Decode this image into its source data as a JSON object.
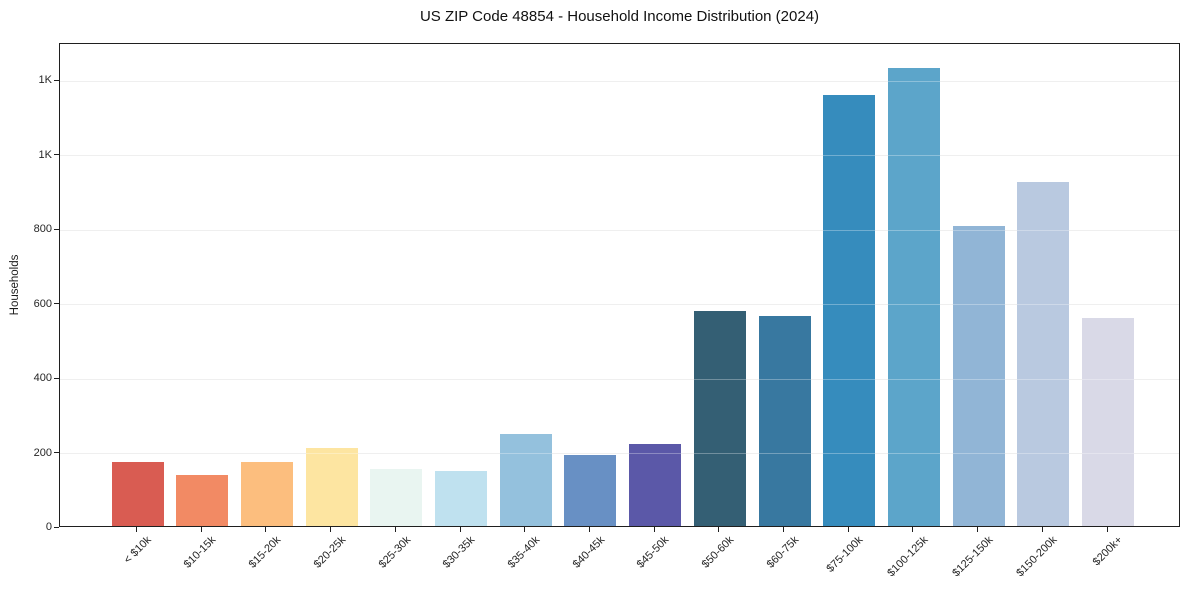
{
  "chart_data": {
    "type": "bar",
    "title": "US ZIP Code 48854 - Household Income Distribution (2024)",
    "xlabel": "",
    "ylabel": "Households",
    "categories": [
      "< $10k",
      "$10-15k",
      "$15-20k",
      "$20-25k",
      "$25-30k",
      "$30-35k",
      "$35-40k",
      "$40-45k",
      "$45-50k",
      "$50-60k",
      "$60-75k",
      "$75-100k",
      "$100-125k",
      "$125-150k",
      "$150-200k",
      "$200k+"
    ],
    "values": [
      172,
      136,
      172,
      210,
      152,
      149,
      247,
      192,
      220,
      578,
      565,
      1158,
      1231,
      806,
      924,
      559
    ],
    "bar_colors": [
      "#d95c52",
      "#f28a64",
      "#fcbe7e",
      "#fde5a1",
      "#e9f5f1",
      "#bfe1ef",
      "#94c1dd",
      "#6890c4",
      "#5b58a8",
      "#345f74",
      "#3878a0",
      "#368cbd",
      "#5ca5ca",
      "#91b5d6",
      "#b9c9e0",
      "#d9d9e7"
    ],
    "ylim": [
      0,
      1300
    ],
    "yticks": [
      {
        "value": 0,
        "label": "0"
      },
      {
        "value": 200,
        "label": "200"
      },
      {
        "value": 400,
        "label": "400"
      },
      {
        "value": 600,
        "label": "600"
      },
      {
        "value": 800,
        "label": "800"
      },
      {
        "value": 1000,
        "label": "1K"
      },
      {
        "value": 1200,
        "label": "1K"
      }
    ],
    "grid": "horizontal",
    "legend": "none",
    "colors": {
      "grid": "#e9e9e9",
      "spine": "#1f1f1f",
      "text": "#262626",
      "background": "#ffffff"
    }
  }
}
